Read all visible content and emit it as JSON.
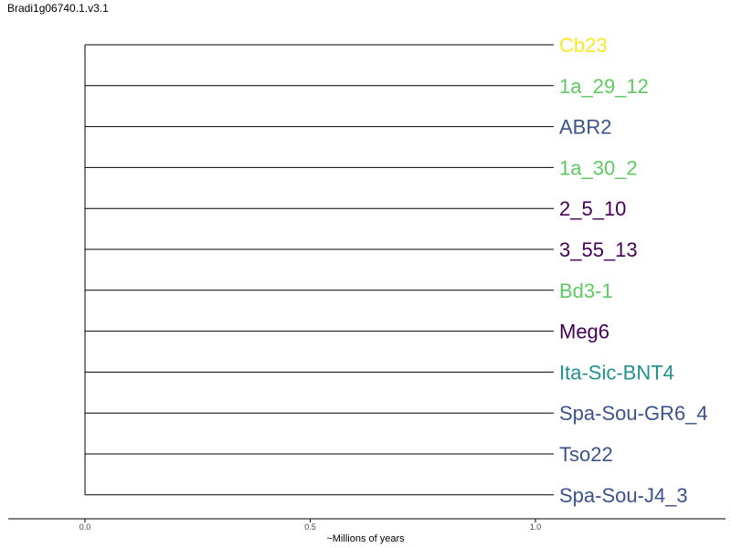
{
  "title": "Bradi1g06740.1.v3.1",
  "axis": {
    "label": "~Millions of years",
    "ticks": [
      {
        "value": 0.0,
        "label": "0.0"
      },
      {
        "value": 0.5,
        "label": "0.5"
      },
      {
        "value": 1.0,
        "label": "1.0"
      }
    ],
    "range": [
      -0.17,
      1.43
    ]
  },
  "tree": {
    "root_age": 0.0,
    "tip_distance": 1.0,
    "leaves": [
      {
        "name": "Cb23",
        "color": "#fde725"
      },
      {
        "name": "1a_29_12",
        "color": "#5ec962"
      },
      {
        "name": "ABR2",
        "color": "#3b528b"
      },
      {
        "name": "1a_30_2",
        "color": "#5ec962"
      },
      {
        "name": "2_5_10",
        "color": "#440154"
      },
      {
        "name": "3_55_13",
        "color": "#440154"
      },
      {
        "name": "Bd3-1",
        "color": "#5ec962"
      },
      {
        "name": "Meg6",
        "color": "#440154"
      },
      {
        "name": "Ita-Sic-BNT4",
        "color": "#21918c"
      },
      {
        "name": "Spa-Sou-GR6_4",
        "color": "#3b528b"
      },
      {
        "name": "Tso22",
        "color": "#3b528b"
      },
      {
        "name": "Spa-Sou-J4_3",
        "color": "#3b528b"
      }
    ]
  }
}
